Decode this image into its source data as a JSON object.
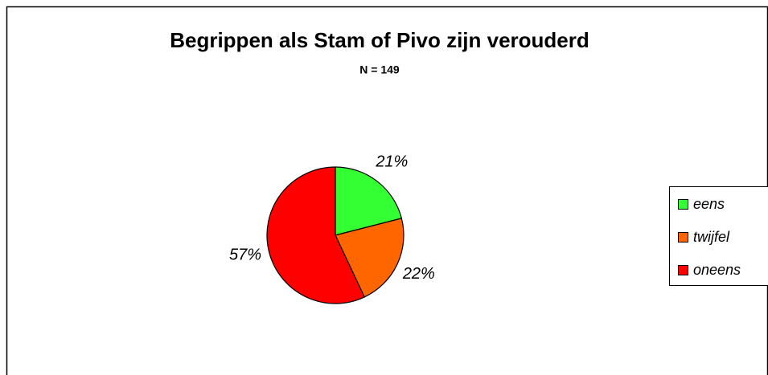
{
  "chart_data": {
    "type": "pie",
    "title": "Begrippen als Stam of Pivo zijn verouderd",
    "subtitle": "N = 149",
    "categories": [
      "eens",
      "twijfel",
      "oneens"
    ],
    "values": [
      21,
      22,
      57
    ],
    "value_labels": [
      "21%",
      "22%",
      "57%"
    ],
    "colors": [
      "#33ff33",
      "#ff6600",
      "#ff0000"
    ],
    "legend": "right"
  }
}
